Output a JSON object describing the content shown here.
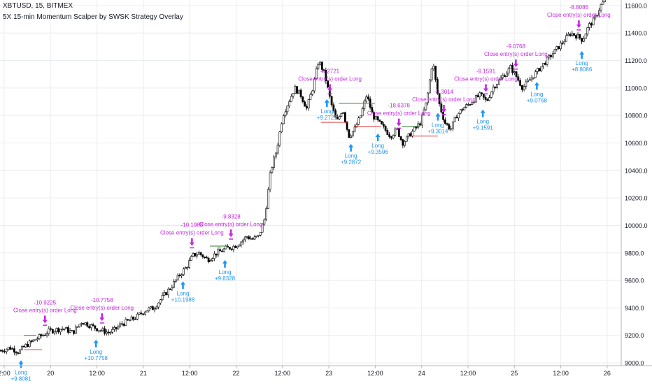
{
  "header": {
    "symbol_line": "XBTUSD, 15, BITMEX",
    "study_line": "5X 15-min Momentum Scalper by SWSK Strategy Overlay"
  },
  "colors": {
    "background": "#ffffff",
    "grid": "#e9ecf1",
    "candle": "#000000",
    "long_marker": "#2196f3",
    "close_marker": "#c628e0",
    "stop_line": "#d32f2f",
    "target_line": "#2e7d32",
    "axis_text": "#131722"
  },
  "chart_data": {
    "type": "candlestick",
    "symbol": "XBTUSD",
    "interval": "15",
    "exchange": "BITMEX",
    "x_ticks": [
      "2:00",
      "20",
      "12:00",
      "21",
      "12:00",
      "22",
      "12:00",
      "23",
      "12:00",
      "24",
      "12:00",
      "25",
      "12:00",
      "26"
    ],
    "y_ticks": [
      9000.0,
      9200.0,
      9400.0,
      9600.0,
      9800.0,
      10000.0,
      10200.0,
      10400.0,
      10600.0,
      10800.0,
      11000.0,
      11200.0,
      11400.0,
      11600.0
    ],
    "y_tick_labels": [
      "9000.0",
      "9200.0",
      "9400.0",
      "9600.0",
      "9800.0",
      "10000.0",
      "10200.0",
      "10400.0",
      "10600.0",
      "10800.0",
      "11000.0",
      "11200.0",
      "11400.0",
      "11600.0"
    ],
    "ylim": [
      8980,
      11640
    ],
    "xlim_hours_note": "",
    "price_path_hours": [
      0,
      3,
      6,
      8,
      10,
      13,
      16,
      18,
      21,
      24,
      27,
      30,
      33,
      36,
      38,
      40,
      42,
      45,
      48,
      51,
      54,
      57,
      60,
      62,
      64,
      66,
      69,
      72,
      75,
      78,
      80,
      82,
      84,
      86,
      88,
      90,
      92,
      94,
      96,
      98,
      100,
      102,
      104,
      106,
      108,
      110,
      112,
      114,
      116,
      118,
      120,
      122,
      124,
      126,
      128,
      130,
      132,
      134,
      136,
      138,
      140,
      142,
      144,
      146,
      148,
      150,
      152,
      154,
      156,
      158,
      160,
      162,
      164,
      166,
      168,
      170,
      172,
      174,
      176,
      178,
      180,
      182,
      184,
      186,
      188,
      190,
      192,
      194,
      196,
      198,
      200,
      202
    ],
    "price_path_values": [
      9090,
      9110,
      9080,
      9120,
      9150,
      9190,
      9230,
      9240,
      9250,
      9220,
      9300,
      9270,
      9240,
      9220,
      9240,
      9280,
      9300,
      9330,
      9380,
      9400,
      9480,
      9560,
      9650,
      9700,
      9780,
      9800,
      9750,
      9800,
      9830,
      9850,
      9880,
      9920,
      9900,
      9920,
      10050,
      10400,
      10550,
      10800,
      10900,
      11000,
      10950,
      10850,
      11000,
      11200,
      11100,
      10900,
      10750,
      10850,
      10650,
      10700,
      10800,
      10950,
      10800,
      10750,
      10700,
      10650,
      10700,
      10600,
      10650,
      10700,
      10750,
      10900,
      11200,
      10900,
      10750,
      10700,
      10800,
      10850,
      10880,
      10920,
      10950,
      10900,
      11000,
      11050,
      11100,
      11150,
      11080,
      11000,
      11050,
      11100,
      11150,
      11200,
      11250,
      11300,
      11350,
      11400,
      11380,
      11350,
      11450,
      11500,
      11600,
      11650
    ],
    "trades": [
      {
        "entry_label": "Long",
        "entry_value": "+9.8081",
        "close_label": "Close entry(s) order Long",
        "close_value": "-10.9225"
      },
      {
        "entry_label": "Long",
        "entry_value": "+10.7758",
        "close_label": "Close entry(s) order Long",
        "close_value": "-10.7758"
      },
      {
        "entry_label": "Long",
        "entry_value": "+10.1988",
        "close_label": "Close entry(s) order Long",
        "close_value": "-10.1988"
      },
      {
        "entry_label": "Long",
        "entry_value": "+9.8328",
        "close_label": "Close entry(s) order Long",
        "close_value": "-9.8328"
      },
      {
        "entry_label": "Long",
        "entry_value": "+9.2721",
        "close_label": "Close entry(s) order Long",
        "close_value": "-9.2721"
      },
      {
        "entry_label": "Long",
        "entry_value": "+9.2872",
        "close_label": "",
        "close_value": ""
      },
      {
        "entry_label": "Long",
        "entry_value": "+9.3506",
        "close_label": "Close entry(s) order Long",
        "close_value": "-18.6378"
      },
      {
        "entry_label": "Long",
        "entry_value": "+9.3014",
        "close_label": "Close entry(s) order Long",
        "close_value": "-9.3014"
      },
      {
        "entry_label": "Long",
        "entry_value": "+9.1591",
        "close_label": "Close entry(s) order Long",
        "close_value": "-9.1591"
      },
      {
        "entry_label": "Long",
        "entry_value": "+9.0768",
        "close_label": "Close entry(s) order Long",
        "close_value": "-9.0768"
      },
      {
        "entry_label": "Long",
        "entry_value": "+8.8086",
        "close_label": "Close entry(s) order Long",
        "close_value": "-8.8086"
      }
    ],
    "grid": true,
    "legend": "none"
  }
}
